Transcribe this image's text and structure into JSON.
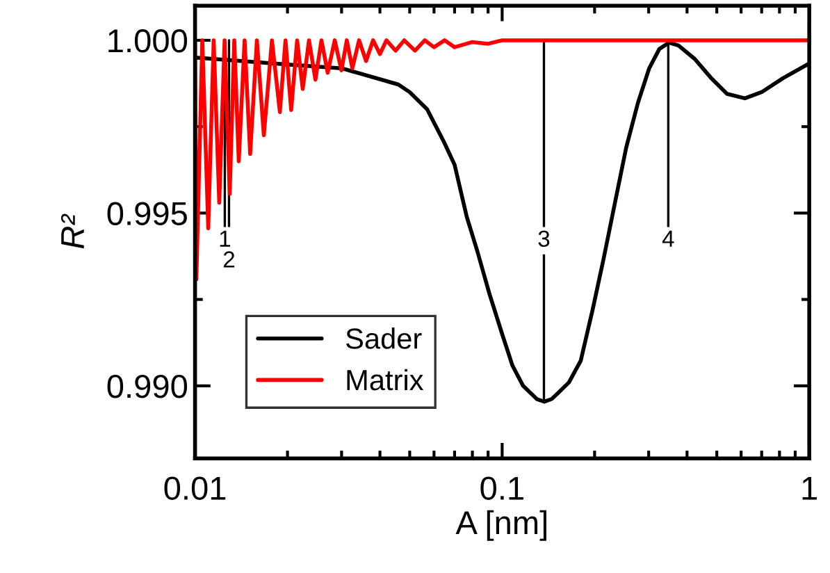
{
  "chart_data": {
    "type": "line",
    "xlabel": "A [nm]",
    "ylabel": "R²",
    "log": "x",
    "xlim": [
      0.01,
      1
    ],
    "xticks": [
      0.01,
      0.1,
      1
    ],
    "ylim": [
      0.9879,
      1.001
    ],
    "yticks": [
      {
        "value": 0.99,
        "label": "0.990"
      },
      {
        "value": 0.995,
        "label": "0.995"
      },
      {
        "value": 1.0,
        "label": "1.000"
      }
    ],
    "grid": false,
    "legend": "lower left",
    "line_style": "solid",
    "marker": "none",
    "series": [
      {
        "name": "Sader",
        "color": "#000000",
        "x": [
          0.01,
          0.02,
          0.03,
          0.0459,
          0.05,
          0.057,
          0.0647,
          0.07,
          0.0767,
          0.083,
          0.091,
          0.1,
          0.108,
          0.117,
          0.1238,
          0.13,
          0.1372,
          0.145,
          0.152,
          0.165,
          0.1803,
          0.197,
          0.214,
          0.233,
          0.2537,
          0.277,
          0.3012,
          0.325,
          0.3495,
          0.375,
          0.4238,
          0.48,
          0.54,
          0.6173,
          0.7,
          0.82,
          1.0
        ],
        "values": [
          0.9995,
          0.9993,
          0.99919,
          0.99872,
          0.9985,
          0.998,
          0.99705,
          0.9964,
          0.99489,
          0.9939,
          0.99265,
          0.9915,
          0.99059,
          0.99,
          0.98979,
          0.98961,
          0.98954,
          0.98962,
          0.98979,
          0.9901,
          0.99073,
          0.9922,
          0.99368,
          0.9953,
          0.99691,
          0.9982,
          0.99919,
          0.99975,
          0.99993,
          0.99985,
          0.99946,
          0.9989,
          0.99845,
          0.99832,
          0.9985,
          0.9989,
          0.99933
        ]
      },
      {
        "name": "Matrix",
        "color": "#ff0000",
        "x": [
          0.01,
          0.0101,
          0.01056,
          0.01104,
          0.0115,
          0.01199,
          0.01248,
          0.01297,
          0.01342,
          0.01388,
          0.0145,
          0.01512,
          0.0159,
          0.01675,
          0.0178,
          0.01889,
          0.0197,
          0.02056,
          0.0215,
          0.02242,
          0.0235,
          0.02466,
          0.0258,
          0.02704,
          0.0285,
          0.02997,
          0.0312,
          0.03253,
          0.0342,
          0.03605,
          0.038,
          0.04,
          0.042,
          0.045,
          0.048,
          0.052,
          0.056,
          0.06,
          0.065,
          0.07,
          0.08,
          0.09,
          0.1,
          0.12,
          1.0
        ],
        "values": [
          1.0,
          0.99308,
          1.0,
          0.99456,
          1.0,
          0.9953,
          1.0,
          0.99556,
          1.0,
          0.9965,
          1.0,
          0.99671,
          1.0,
          0.99725,
          1.0,
          0.99792,
          1.0,
          0.99798,
          1.0,
          0.99859,
          1.0,
          0.99886,
          1.0,
          0.99906,
          1.0,
          0.99913,
          1.0,
          0.99919,
          1.0,
          0.9994,
          1.0,
          0.9996,
          1.0,
          0.9997,
          1.0,
          0.9997,
          1.0,
          0.9998,
          1.0,
          0.9998,
          0.99995,
          0.9999,
          1.0,
          1.0,
          1.0
        ]
      }
    ],
    "ref_lines": [
      {
        "axis": "x",
        "value": 0.0125,
        "color": "#000000"
      },
      {
        "axis": "x",
        "value": 0.0129,
        "color": "#000000"
      },
      {
        "axis": "x",
        "value": 0.1368,
        "color": "#000000"
      },
      {
        "axis": "x",
        "value": 0.3475,
        "color": "#000000"
      }
    ],
    "annotations": [
      {
        "text": "1",
        "x": 0.0125,
        "y": 0.9942
      },
      {
        "text": "2",
        "x": 0.0129,
        "y": 0.9936
      },
      {
        "text": "3",
        "x": 0.1368,
        "y": 0.9942
      },
      {
        "text": "4",
        "x": 0.3475,
        "y": 0.9942
      }
    ]
  }
}
